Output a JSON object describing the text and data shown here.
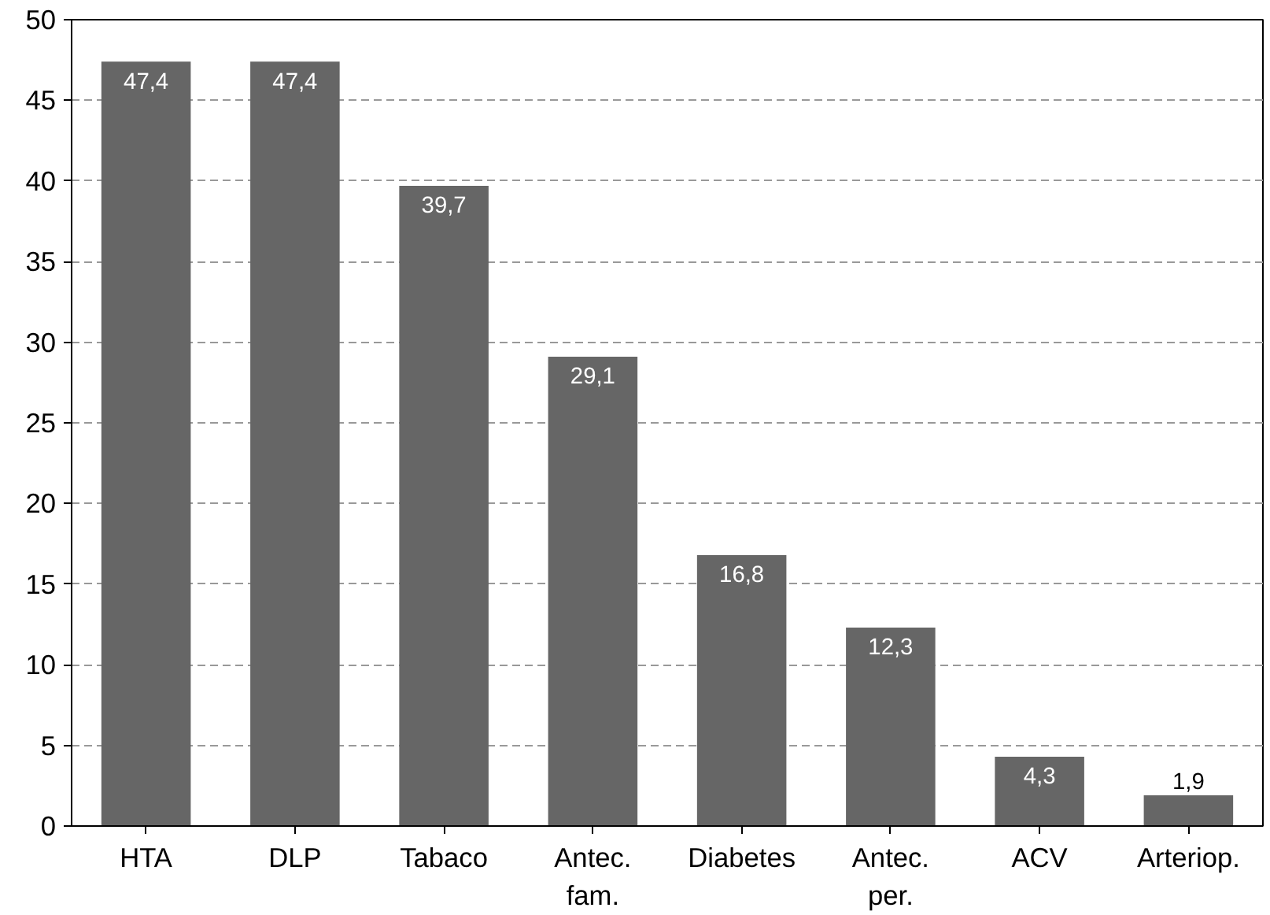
{
  "chart_data": {
    "type": "bar",
    "categories": [
      "HTA",
      "DLP",
      "Tabaco",
      "Antec. fam.",
      "Diabetes",
      "Antec. per.",
      "ACV",
      "Arteriop."
    ],
    "values": [
      47.4,
      47.4,
      39.7,
      29.1,
      16.8,
      12.3,
      4.3,
      1.9
    ],
    "value_labels": [
      "47,4",
      "47,4",
      "39,7",
      "29,1",
      "16,8",
      "12,3",
      "4,3",
      "1,9"
    ],
    "color": "#666666",
    "ylim": [
      0,
      50
    ],
    "yticks": [
      0,
      5,
      10,
      15,
      20,
      25,
      30,
      35,
      40,
      45,
      50
    ],
    "grid": "y"
  }
}
